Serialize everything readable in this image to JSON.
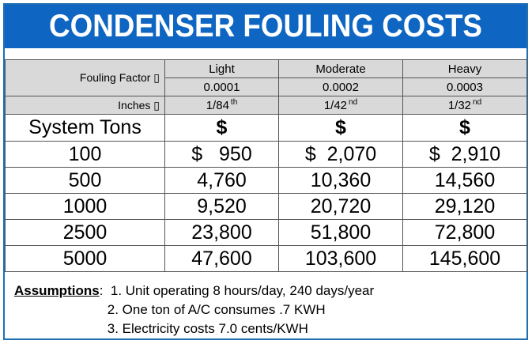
{
  "title": "CONDENSER FOULING COSTS",
  "header": {
    "fouling_factor_label": "Fouling Factor ▯",
    "inches_label": "Inches ▯",
    "columns": [
      {
        "name": "Light",
        "factor": "0.0001",
        "inches": "1/84",
        "suffix": "th"
      },
      {
        "name": "Moderate",
        "factor": "0.0002",
        "inches": "1/42",
        "suffix": "nd"
      },
      {
        "name": "Heavy",
        "factor": "0.0003",
        "inches": "1/32",
        "suffix": "nd"
      }
    ]
  },
  "units_row": {
    "label": "System Tons",
    "light": "$",
    "moderate": "$",
    "heavy": "$"
  },
  "rows": [
    {
      "tons": "100",
      "light": "$   950",
      "moderate": "$  2,070",
      "heavy": "$  2,910"
    },
    {
      "tons": "500",
      "light": "4,760",
      "moderate": "10,360",
      "heavy": "14,560"
    },
    {
      "tons": "1000",
      "light": "9,520",
      "moderate": "20,720",
      "heavy": "29,120"
    },
    {
      "tons": "2500",
      "light": "23,800",
      "moderate": "51,800",
      "heavy": "72,800"
    },
    {
      "tons": "5000",
      "light": "47,600",
      "moderate": "103,600",
      "heavy": "145,600"
    }
  ],
  "assumptions": {
    "label": "Assumptions",
    "separator": ":",
    "items": [
      "1. Unit operating 8 hours/day, 240 days/year",
      "2. One ton of A/C consumes .7 KWH",
      "3. Electricity costs 7.0 cents/KWH"
    ]
  }
}
